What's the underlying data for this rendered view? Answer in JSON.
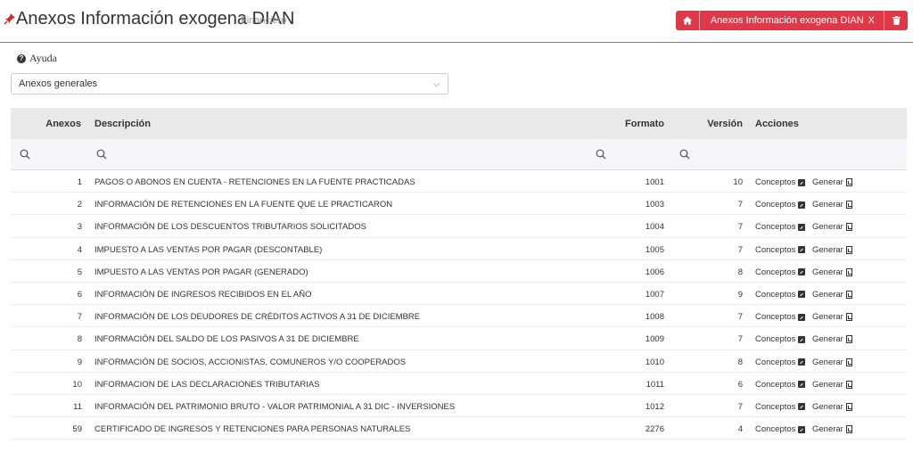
{
  "header": {
    "title": "Anexos Información exogena DIAN",
    "module": "Financiero",
    "breadcrumb": {
      "page": "Anexos Información exogena DIAN",
      "close_mark": "X"
    }
  },
  "help": {
    "label": "Ayuda"
  },
  "select": {
    "value": "Anexos generales"
  },
  "table": {
    "headers": {
      "anexos": "Anexos",
      "descripcion": "Descripción",
      "formato": "Formato",
      "version": "Versión",
      "acciones": "Acciones"
    },
    "action_conceptos": "Conceptos",
    "action_generar": "Generar",
    "rows": [
      {
        "anexo": "1",
        "descripcion": "PAGOS O ABONOS EN CUENTA - RETENCIONES EN LA FUENTE PRACTICADAS",
        "formato": "1001",
        "version": "10"
      },
      {
        "anexo": "2",
        "descripcion": "INFORMACIÓN DE RETENCIONES EN LA FUENTE QUE LE PRACTICARON",
        "formato": "1003",
        "version": "7"
      },
      {
        "anexo": "3",
        "descripcion": "INFORMACIÓN DE LOS DESCUENTOS TRIBUTARIOS SOLICITADOS",
        "formato": "1004",
        "version": "7"
      },
      {
        "anexo": "4",
        "descripcion": "IMPUESTO A LAS VENTAS POR PAGAR (DESCONTABLE)",
        "formato": "1005",
        "version": "7"
      },
      {
        "anexo": "5",
        "descripcion": "IMPUESTO A LAS VENTAS POR PAGAR (GENERADO)",
        "formato": "1006",
        "version": "8"
      },
      {
        "anexo": "6",
        "descripcion": "INFORMACIÓN DE INGRESOS RECIBIDOS EN EL AÑO",
        "formato": "1007",
        "version": "9"
      },
      {
        "anexo": "7",
        "descripcion": "INFORMACIÓN DE LOS DEUDORES DE CRÉDITOS ACTIVOS A 31 DE DICIEMBRE",
        "formato": "1008",
        "version": "7"
      },
      {
        "anexo": "8",
        "descripcion": "INFORMACIÓN DEL SALDO DE LOS PASIVOS A 31 DE DICIEMBRE",
        "formato": "1009",
        "version": "7"
      },
      {
        "anexo": "9",
        "descripcion": "INFORMACIÓN DE SOCIOS, ACCIONISTAS, COMUNEROS Y/O COOPERADOS",
        "formato": "1010",
        "version": "8"
      },
      {
        "anexo": "10",
        "descripcion": "INFORMACION DE LAS DECLARACIONES TRIBUTARIAS",
        "formato": "1011",
        "version": "6"
      },
      {
        "anexo": "11",
        "descripcion": "INFORMACIÓN DEL PATRIMONIO BRUTO - VALOR PATRIMONIAL A 31 DIC - INVERSIONES",
        "formato": "1012",
        "version": "7"
      },
      {
        "anexo": "59",
        "descripcion": "CERTIFICADO DE INGRESOS Y RETENCIONES PARA PERSONAS NATURALES",
        "formato": "2276",
        "version": "4"
      }
    ]
  }
}
